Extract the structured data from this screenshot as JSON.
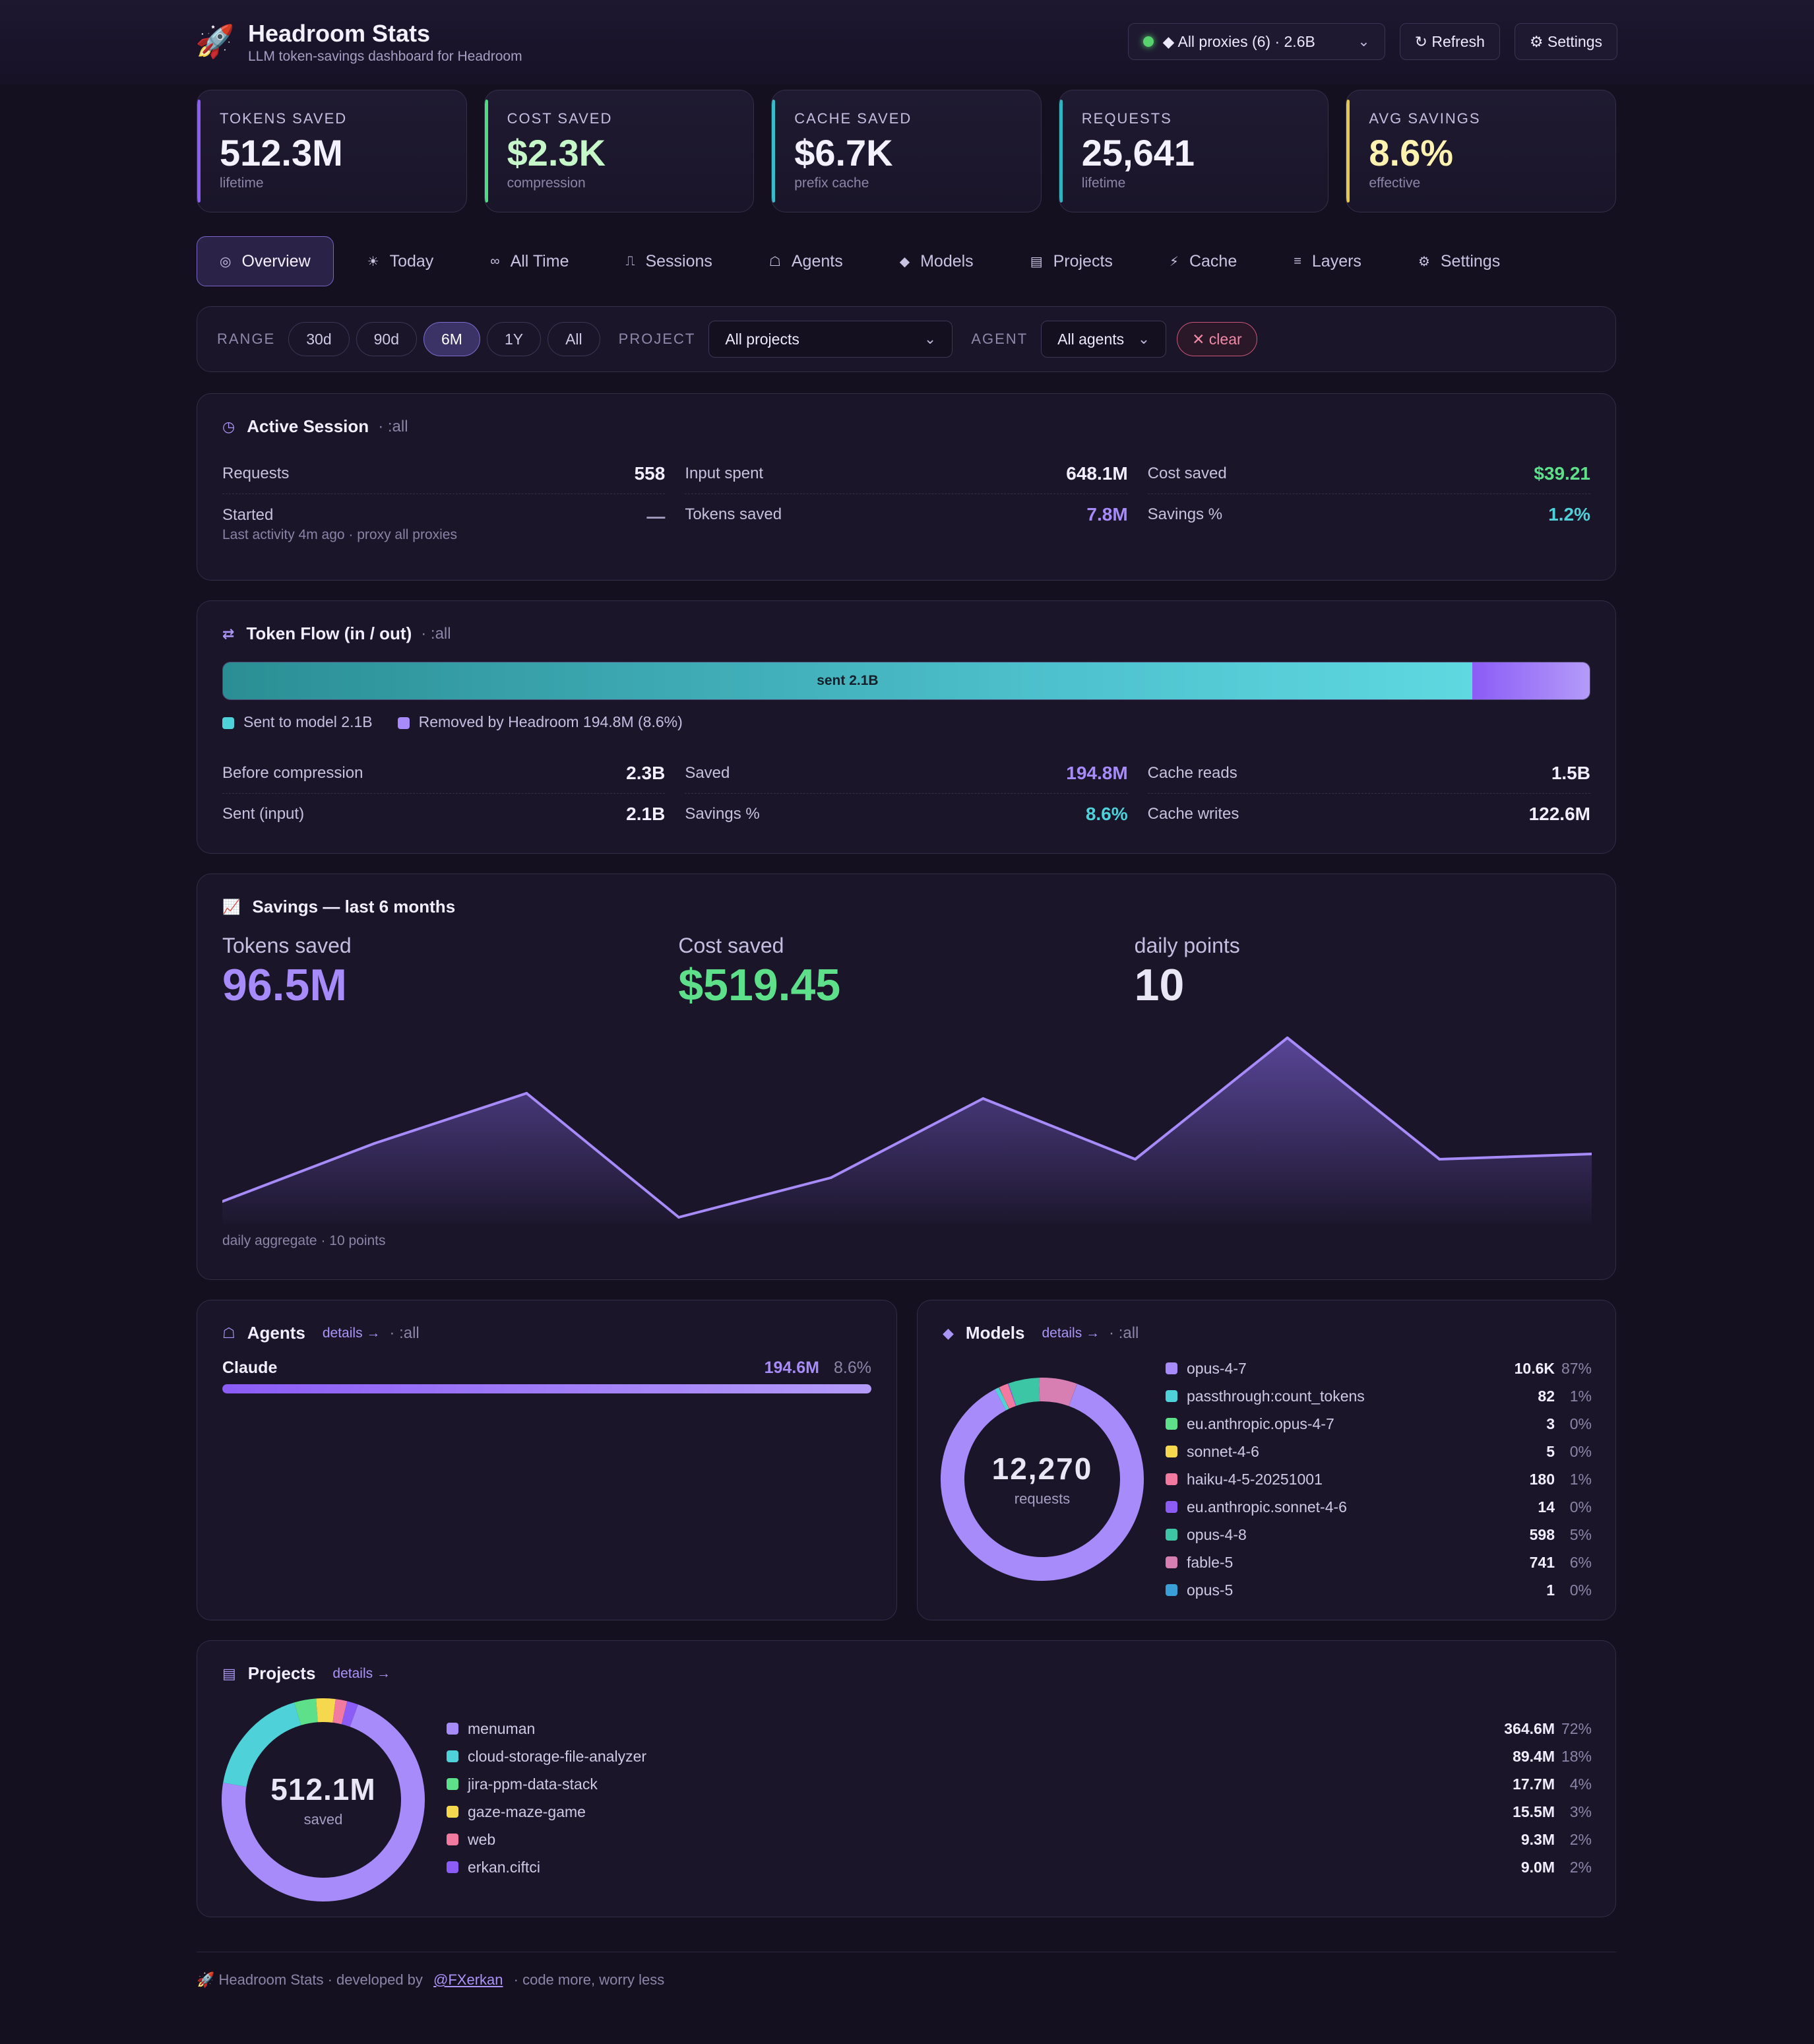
{
  "app": {
    "title": "Headroom Stats",
    "subtitle": "LLM token-savings dashboard for Headroom",
    "logo_icon": "rocket-icon"
  },
  "header_actions": {
    "proxy_select": "◆ All proxies (6) · 2.6B",
    "refresh_label": "↻ Refresh",
    "settings_label": "⚙ Settings"
  },
  "kpis": [
    {
      "label": "TOKENS SAVED",
      "value": "512.3M",
      "sub": "lifetime",
      "accent": "#8b5cf6",
      "color": "#f4f1ff"
    },
    {
      "label": "COST SAVED",
      "value": "$2.3K",
      "sub": "compression",
      "accent": "#4ade80",
      "color": "#c6f7c8"
    },
    {
      "label": "CACHE SAVED",
      "value": "$6.7K",
      "sub": "prefix cache",
      "accent": "#38bdc8",
      "color": "#f4f1ff"
    },
    {
      "label": "REQUESTS",
      "value": "25,641",
      "sub": "lifetime",
      "accent": "#2fb3c0",
      "color": "#f4f1ff"
    },
    {
      "label": "AVG SAVINGS",
      "value": "8.6%",
      "sub": "effective",
      "accent": "#e6c84a",
      "color": "#fdf2b0"
    }
  ],
  "tabs": [
    {
      "icon": "◎",
      "label": "Overview",
      "active": true
    },
    {
      "icon": "☀",
      "label": "Today"
    },
    {
      "icon": "∞",
      "label": "All Time"
    },
    {
      "icon": "⎍",
      "label": "Sessions"
    },
    {
      "icon": "☖",
      "label": "Agents"
    },
    {
      "icon": "◆",
      "label": "Models"
    },
    {
      "icon": "▤",
      "label": "Projects"
    },
    {
      "icon": "⚡",
      "label": "Cache"
    },
    {
      "icon": "≡",
      "label": "Layers"
    },
    {
      "icon": "⚙",
      "label": "Settings"
    }
  ],
  "filters": {
    "range_label": "RANGE",
    "ranges": [
      "30d",
      "90d",
      "6M",
      "1Y",
      "All"
    ],
    "active_range": "6M",
    "project_label": "PROJECT",
    "project_value": "All projects",
    "agent_label": "AGENT",
    "agent_value": "All agents",
    "clear_label": "✕ clear"
  },
  "active_session": {
    "title": "Active Session",
    "scope": "· :all",
    "requests_label": "Requests",
    "requests_value": "558",
    "started_label": "Started",
    "started_value": "—",
    "started_sub": "Last activity 4m ago · proxy all proxies",
    "input_label": "Input spent",
    "input_value": "648.1M",
    "tokens_label": "Tokens saved",
    "tokens_value": "7.8M",
    "cost_label": "Cost saved",
    "cost_value": "$39.21",
    "pct_label": "Savings %",
    "pct_value": "1.2%"
  },
  "token_flow": {
    "title": "Token Flow (in / out)",
    "scope": "· :all",
    "bar_label": "sent 2.1B",
    "sent_fraction": 0.914,
    "legend_sent": "Sent to model 2.1B",
    "legend_removed": "Removed by Headroom 194.8M (8.6%)",
    "before_label": "Before compression",
    "before_value": "2.3B",
    "sent_label": "Sent (input)",
    "sent_value": "2.1B",
    "saved_label": "Saved",
    "saved_value": "194.8M",
    "pct_label": "Savings %",
    "pct_value": "8.6%",
    "reads_label": "Cache reads",
    "reads_value": "1.5B",
    "writes_label": "Cache writes",
    "writes_value": "122.6M"
  },
  "savings": {
    "title": "Savings — last 6 months",
    "tokens_label": "Tokens saved",
    "tokens_value": "96.5M",
    "cost_label": "Cost saved",
    "cost_value": "$519.45",
    "points_label": "daily points",
    "points_value": "10",
    "footnote": "daily aggregate · 10 points"
  },
  "chart_data": {
    "type": "area",
    "x": [
      1,
      2,
      3,
      4,
      5,
      6,
      7,
      8,
      9,
      10
    ],
    "series": [
      {
        "values": [
          1.2,
          5.6,
          9.4,
          0.0,
          3.0,
          9.0,
          4.4,
          13.6,
          4.4,
          4.8
        ]
      }
    ],
    "ylim": [
      0,
      14
    ],
    "grid": false,
    "color": "#a78bfa"
  },
  "agents": {
    "title": "Agents",
    "details": "details →",
    "scope": "· :all",
    "items": [
      {
        "name": "Claude",
        "value": "194.6M",
        "pct": "8.6%",
        "fraction": 1.0
      }
    ]
  },
  "models": {
    "title": "Models",
    "details": "details →",
    "scope": "· :all",
    "center_value": "12,270",
    "center_label": "requests",
    "items": [
      {
        "name": "opus-4-7",
        "value": "10.6K",
        "pct": "87%",
        "count": 10600,
        "color": "#a78bfa"
      },
      {
        "name": "passthrough:count_tokens",
        "value": "82",
        "pct": "1%",
        "count": 82,
        "color": "#4fd1d9"
      },
      {
        "name": "eu.anthropic.opus-4-7",
        "value": "3",
        "pct": "0%",
        "count": 3,
        "color": "#5ee08b"
      },
      {
        "name": "sonnet-4-6",
        "value": "5",
        "pct": "0%",
        "count": 5,
        "color": "#f6d84e"
      },
      {
        "name": "haiku-4-5-20251001",
        "value": "180",
        "pct": "1%",
        "count": 180,
        "color": "#f27aa0"
      },
      {
        "name": "eu.anthropic.sonnet-4-6",
        "value": "14",
        "pct": "0%",
        "count": 14,
        "color": "#8b5cf6"
      },
      {
        "name": "opus-4-8",
        "value": "598",
        "pct": "5%",
        "count": 598,
        "color": "#3cc6a6"
      },
      {
        "name": "fable-5",
        "value": "741",
        "pct": "6%",
        "count": 741,
        "color": "#d77fb2"
      },
      {
        "name": "opus-5",
        "value": "1",
        "pct": "0%",
        "count": 1,
        "color": "#3a9fd6"
      }
    ]
  },
  "projects": {
    "title": "Projects",
    "details": "details →",
    "center_value": "512.1M",
    "center_label": "saved",
    "items": [
      {
        "name": "menuman",
        "value": "364.6M",
        "pct": "72%",
        "amount": 364.6,
        "color": "#a78bfa"
      },
      {
        "name": "cloud-storage-file-analyzer",
        "value": "89.4M",
        "pct": "18%",
        "amount": 89.4,
        "color": "#4fd1d9"
      },
      {
        "name": "jira-ppm-data-stack",
        "value": "17.7M",
        "pct": "4%",
        "amount": 17.7,
        "color": "#5ee08b"
      },
      {
        "name": "gaze-maze-game",
        "value": "15.5M",
        "pct": "3%",
        "amount": 15.5,
        "color": "#f6d84e"
      },
      {
        "name": "web",
        "value": "9.3M",
        "pct": "2%",
        "amount": 9.3,
        "color": "#f27aa0"
      },
      {
        "name": "erkan.ciftci",
        "value": "9.0M",
        "pct": "2%",
        "amount": 9.0,
        "color": "#8b5cf6"
      }
    ]
  },
  "footer": {
    "prefix": "🚀 Headroom Stats · developed by",
    "link": "@FXerkan",
    "suffix": "· code more, worry less"
  }
}
